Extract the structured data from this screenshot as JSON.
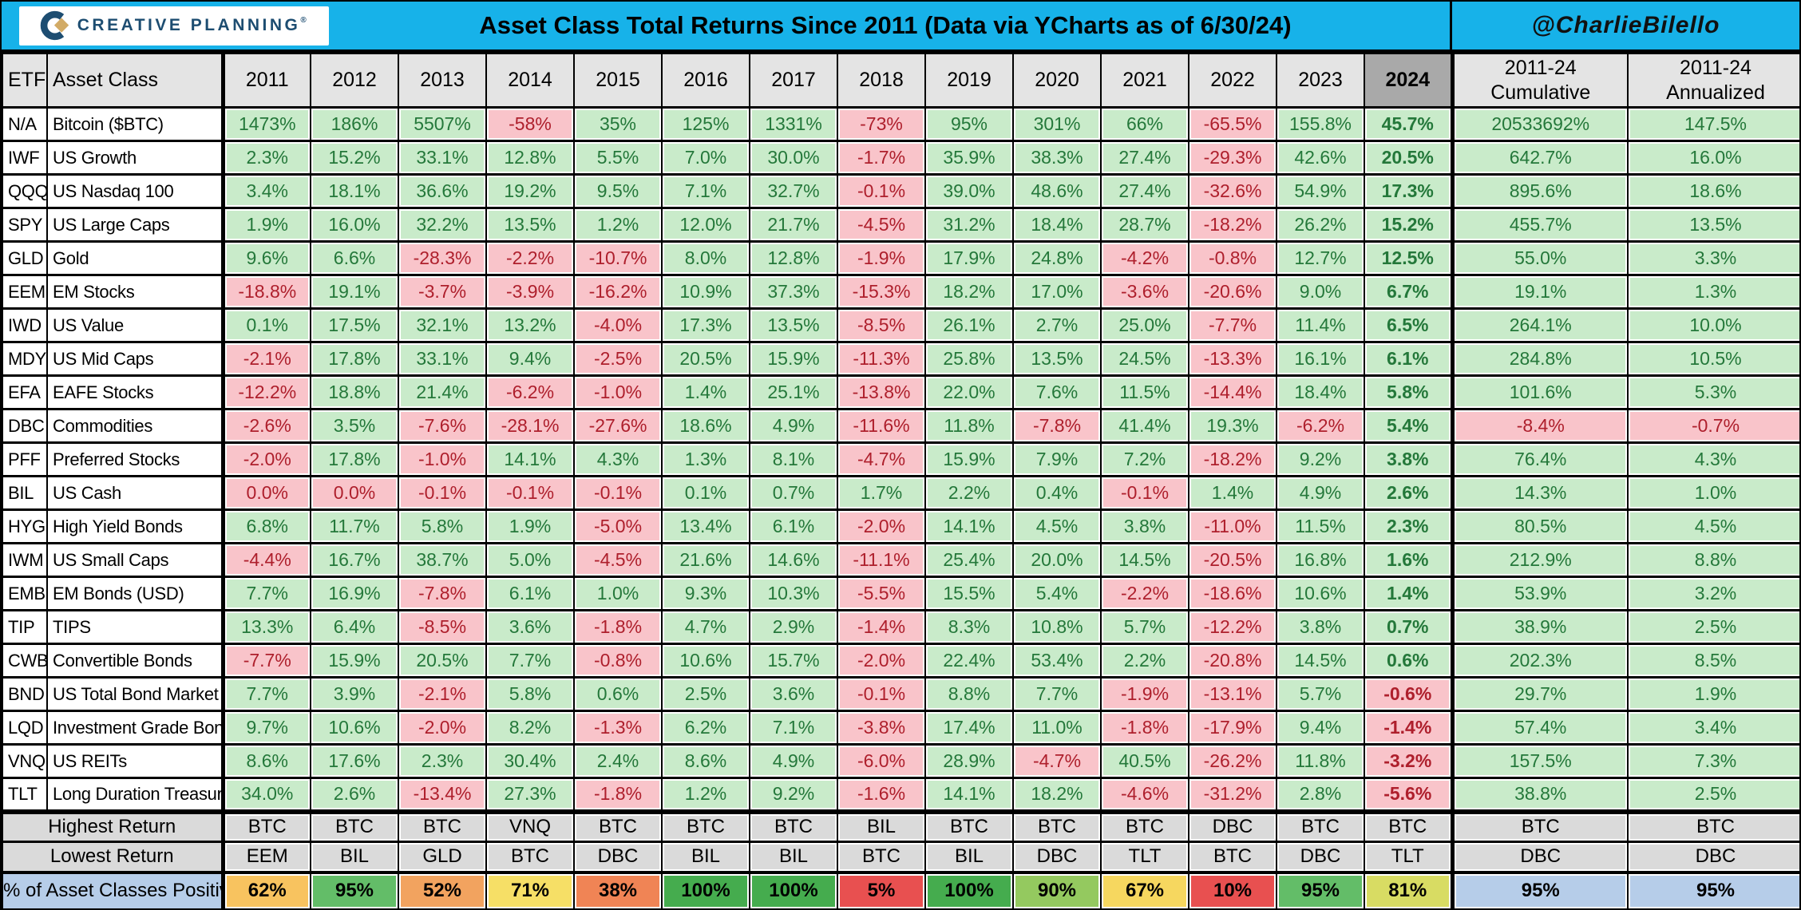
{
  "header": {
    "logo_text": "CREATIVE PLANNING",
    "logo_reg": "®",
    "title": "Asset Class Total Returns Since 2011 (Data via YCharts as of 6/30/24)",
    "handle": "@CharlieBilello"
  },
  "colors": {
    "accent_cyan": "#17b2e9",
    "logo_navy": "#1d4d71",
    "logo_gold": "#d2ab66",
    "positive_bg": "#c9ebca",
    "positive_text": "#24783a",
    "negative_bg": "#f9c4ca",
    "negative_text": "#ae1f2c",
    "header_gray": "#e4e4e4",
    "col2024_gray": "#a9a9a9",
    "footer_gray": "#dadada",
    "summary_blue": "#b6cde9"
  },
  "chart_data": {
    "type": "table",
    "col_headers": {
      "etf": "ETF",
      "asset_class": "Asset Class",
      "years": [
        "2011",
        "2012",
        "2013",
        "2014",
        "2015",
        "2016",
        "2017",
        "2018",
        "2019",
        "2020",
        "2021",
        "2022",
        "2023",
        "2024"
      ],
      "summary": [
        {
          "line1": "2011-24",
          "line2": "Cumulative"
        },
        {
          "line1": "2011-24",
          "line2": "Annualized"
        }
      ]
    },
    "rows": [
      {
        "etf": "N/A",
        "asset_class": "Bitcoin ($BTC)",
        "values": [
          "1473%",
          "186%",
          "5507%",
          "-58%",
          "35%",
          "125%",
          "1331%",
          "-73%",
          "95%",
          "301%",
          "66%",
          "-65.5%",
          "155.8%",
          "45.7%"
        ],
        "cumulative": "20533692%",
        "annualized": "147.5%"
      },
      {
        "etf": "IWF",
        "asset_class": "US Growth",
        "values": [
          "2.3%",
          "15.2%",
          "33.1%",
          "12.8%",
          "5.5%",
          "7.0%",
          "30.0%",
          "-1.7%",
          "35.9%",
          "38.3%",
          "27.4%",
          "-29.3%",
          "42.6%",
          "20.5%"
        ],
        "cumulative": "642.7%",
        "annualized": "16.0%"
      },
      {
        "etf": "QQQ",
        "asset_class": "US Nasdaq 100",
        "values": [
          "3.4%",
          "18.1%",
          "36.6%",
          "19.2%",
          "9.5%",
          "7.1%",
          "32.7%",
          "-0.1%",
          "39.0%",
          "48.6%",
          "27.4%",
          "-32.6%",
          "54.9%",
          "17.3%"
        ],
        "cumulative": "895.6%",
        "annualized": "18.6%"
      },
      {
        "etf": "SPY",
        "asset_class": "US Large Caps",
        "values": [
          "1.9%",
          "16.0%",
          "32.2%",
          "13.5%",
          "1.2%",
          "12.0%",
          "21.7%",
          "-4.5%",
          "31.2%",
          "18.4%",
          "28.7%",
          "-18.2%",
          "26.2%",
          "15.2%"
        ],
        "cumulative": "455.7%",
        "annualized": "13.5%"
      },
      {
        "etf": "GLD",
        "asset_class": "Gold",
        "values": [
          "9.6%",
          "6.6%",
          "-28.3%",
          "-2.2%",
          "-10.7%",
          "8.0%",
          "12.8%",
          "-1.9%",
          "17.9%",
          "24.8%",
          "-4.2%",
          "-0.8%",
          "12.7%",
          "12.5%"
        ],
        "cumulative": "55.0%",
        "annualized": "3.3%"
      },
      {
        "etf": "EEM",
        "asset_class": "EM Stocks",
        "values": [
          "-18.8%",
          "19.1%",
          "-3.7%",
          "-3.9%",
          "-16.2%",
          "10.9%",
          "37.3%",
          "-15.3%",
          "18.2%",
          "17.0%",
          "-3.6%",
          "-20.6%",
          "9.0%",
          "6.7%"
        ],
        "cumulative": "19.1%",
        "annualized": "1.3%"
      },
      {
        "etf": "IWD",
        "asset_class": "US Value",
        "values": [
          "0.1%",
          "17.5%",
          "32.1%",
          "13.2%",
          "-4.0%",
          "17.3%",
          "13.5%",
          "-8.5%",
          "26.1%",
          "2.7%",
          "25.0%",
          "-7.7%",
          "11.4%",
          "6.5%"
        ],
        "cumulative": "264.1%",
        "annualized": "10.0%"
      },
      {
        "etf": "MDY",
        "asset_class": "US Mid Caps",
        "values": [
          "-2.1%",
          "17.8%",
          "33.1%",
          "9.4%",
          "-2.5%",
          "20.5%",
          "15.9%",
          "-11.3%",
          "25.8%",
          "13.5%",
          "24.5%",
          "-13.3%",
          "16.1%",
          "6.1%"
        ],
        "cumulative": "284.8%",
        "annualized": "10.5%"
      },
      {
        "etf": "EFA",
        "asset_class": "EAFE Stocks",
        "values": [
          "-12.2%",
          "18.8%",
          "21.4%",
          "-6.2%",
          "-1.0%",
          "1.4%",
          "25.1%",
          "-13.8%",
          "22.0%",
          "7.6%",
          "11.5%",
          "-14.4%",
          "18.4%",
          "5.8%"
        ],
        "cumulative": "101.6%",
        "annualized": "5.3%"
      },
      {
        "etf": "DBC",
        "asset_class": "Commodities",
        "values": [
          "-2.6%",
          "3.5%",
          "-7.6%",
          "-28.1%",
          "-27.6%",
          "18.6%",
          "4.9%",
          "-11.6%",
          "11.8%",
          "-7.8%",
          "41.4%",
          "19.3%",
          "-6.2%",
          "5.4%"
        ],
        "cumulative": "-8.4%",
        "annualized": "-0.7%"
      },
      {
        "etf": "PFF",
        "asset_class": "Preferred Stocks",
        "values": [
          "-2.0%",
          "17.8%",
          "-1.0%",
          "14.1%",
          "4.3%",
          "1.3%",
          "8.1%",
          "-4.7%",
          "15.9%",
          "7.9%",
          "7.2%",
          "-18.2%",
          "9.2%",
          "3.8%"
        ],
        "cumulative": "76.4%",
        "annualized": "4.3%"
      },
      {
        "etf": "BIL",
        "asset_class": "US Cash",
        "values": [
          "0.0%",
          "0.0%",
          "-0.1%",
          "-0.1%",
          "-0.1%",
          "0.1%",
          "0.7%",
          "1.7%",
          "2.2%",
          "0.4%",
          "-0.1%",
          "1.4%",
          "4.9%",
          "2.6%"
        ],
        "cumulative": "14.3%",
        "annualized": "1.0%"
      },
      {
        "etf": "HYG",
        "asset_class": "High Yield Bonds",
        "values": [
          "6.8%",
          "11.7%",
          "5.8%",
          "1.9%",
          "-5.0%",
          "13.4%",
          "6.1%",
          "-2.0%",
          "14.1%",
          "4.5%",
          "3.8%",
          "-11.0%",
          "11.5%",
          "2.3%"
        ],
        "cumulative": "80.5%",
        "annualized": "4.5%"
      },
      {
        "etf": "IWM",
        "asset_class": "US Small Caps",
        "values": [
          "-4.4%",
          "16.7%",
          "38.7%",
          "5.0%",
          "-4.5%",
          "21.6%",
          "14.6%",
          "-11.1%",
          "25.4%",
          "20.0%",
          "14.5%",
          "-20.5%",
          "16.8%",
          "1.6%"
        ],
        "cumulative": "212.9%",
        "annualized": "8.8%"
      },
      {
        "etf": "EMB",
        "asset_class": "EM Bonds (USD)",
        "values": [
          "7.7%",
          "16.9%",
          "-7.8%",
          "6.1%",
          "1.0%",
          "9.3%",
          "10.3%",
          "-5.5%",
          "15.5%",
          "5.4%",
          "-2.2%",
          "-18.6%",
          "10.6%",
          "1.4%"
        ],
        "cumulative": "53.9%",
        "annualized": "3.2%"
      },
      {
        "etf": "TIP",
        "asset_class": "TIPS",
        "values": [
          "13.3%",
          "6.4%",
          "-8.5%",
          "3.6%",
          "-1.8%",
          "4.7%",
          "2.9%",
          "-1.4%",
          "8.3%",
          "10.8%",
          "5.7%",
          "-12.2%",
          "3.8%",
          "0.7%"
        ],
        "cumulative": "38.9%",
        "annualized": "2.5%"
      },
      {
        "etf": "CWB",
        "asset_class": "Convertible Bonds",
        "values": [
          "-7.7%",
          "15.9%",
          "20.5%",
          "7.7%",
          "-0.8%",
          "10.6%",
          "15.7%",
          "-2.0%",
          "22.4%",
          "53.4%",
          "2.2%",
          "-20.8%",
          "14.5%",
          "0.6%"
        ],
        "cumulative": "202.3%",
        "annualized": "8.5%"
      },
      {
        "etf": "BND",
        "asset_class": "US Total Bond Market",
        "values": [
          "7.7%",
          "3.9%",
          "-2.1%",
          "5.8%",
          "0.6%",
          "2.5%",
          "3.6%",
          "-0.1%",
          "8.8%",
          "7.7%",
          "-1.9%",
          "-13.1%",
          "5.7%",
          "-0.6%"
        ],
        "cumulative": "29.7%",
        "annualized": "1.9%"
      },
      {
        "etf": "LQD",
        "asset_class": "Investment Grade Bonds",
        "values": [
          "9.7%",
          "10.6%",
          "-2.0%",
          "8.2%",
          "-1.3%",
          "6.2%",
          "7.1%",
          "-3.8%",
          "17.4%",
          "11.0%",
          "-1.8%",
          "-17.9%",
          "9.4%",
          "-1.4%"
        ],
        "cumulative": "57.4%",
        "annualized": "3.4%"
      },
      {
        "etf": "VNQ",
        "asset_class": "US REITs",
        "values": [
          "8.6%",
          "17.6%",
          "2.3%",
          "30.4%",
          "2.4%",
          "8.6%",
          "4.9%",
          "-6.0%",
          "28.9%",
          "-4.7%",
          "40.5%",
          "-26.2%",
          "11.8%",
          "-3.2%"
        ],
        "cumulative": "157.5%",
        "annualized": "7.3%"
      },
      {
        "etf": "TLT",
        "asset_class": "Long Duration Treasuries",
        "values": [
          "34.0%",
          "2.6%",
          "-13.4%",
          "27.3%",
          "-1.8%",
          "1.2%",
          "9.2%",
          "-1.6%",
          "14.1%",
          "18.2%",
          "-4.6%",
          "-31.2%",
          "2.8%",
          "-5.6%"
        ],
        "cumulative": "38.8%",
        "annualized": "2.5%"
      }
    ],
    "footer": {
      "highest": {
        "label": "Highest Return",
        "values": [
          "BTC",
          "BTC",
          "BTC",
          "VNQ",
          "BTC",
          "BTC",
          "BTC",
          "BIL",
          "BTC",
          "BTC",
          "BTC",
          "DBC",
          "BTC",
          "BTC",
          "BTC",
          "BTC"
        ]
      },
      "lowest": {
        "label": "Lowest Return",
        "values": [
          "EEM",
          "BIL",
          "GLD",
          "BTC",
          "DBC",
          "BIL",
          "BIL",
          "BTC",
          "BIL",
          "DBC",
          "TLT",
          "BTC",
          "DBC",
          "TLT",
          "DBC",
          "DBC"
        ]
      },
      "pct_positive": {
        "label": "% of Asset Classes Positive",
        "values": [
          "62%",
          "95%",
          "52%",
          "71%",
          "38%",
          "100%",
          "100%",
          "5%",
          "100%",
          "90%",
          "67%",
          "10%",
          "95%",
          "81%",
          "95%",
          "95%"
        ],
        "cell_colors": [
          "#f8c35f",
          "#63bd68",
          "#f2a35f",
          "#f6df66",
          "#f08455",
          "#45ac4e",
          "#45ac4e",
          "#e85050",
          "#45ac4e",
          "#94c95f",
          "#f6d75f",
          "#e85050",
          "#63bd68",
          "#d8dc63",
          "#b6cde9",
          "#b6cde9"
        ]
      }
    }
  }
}
